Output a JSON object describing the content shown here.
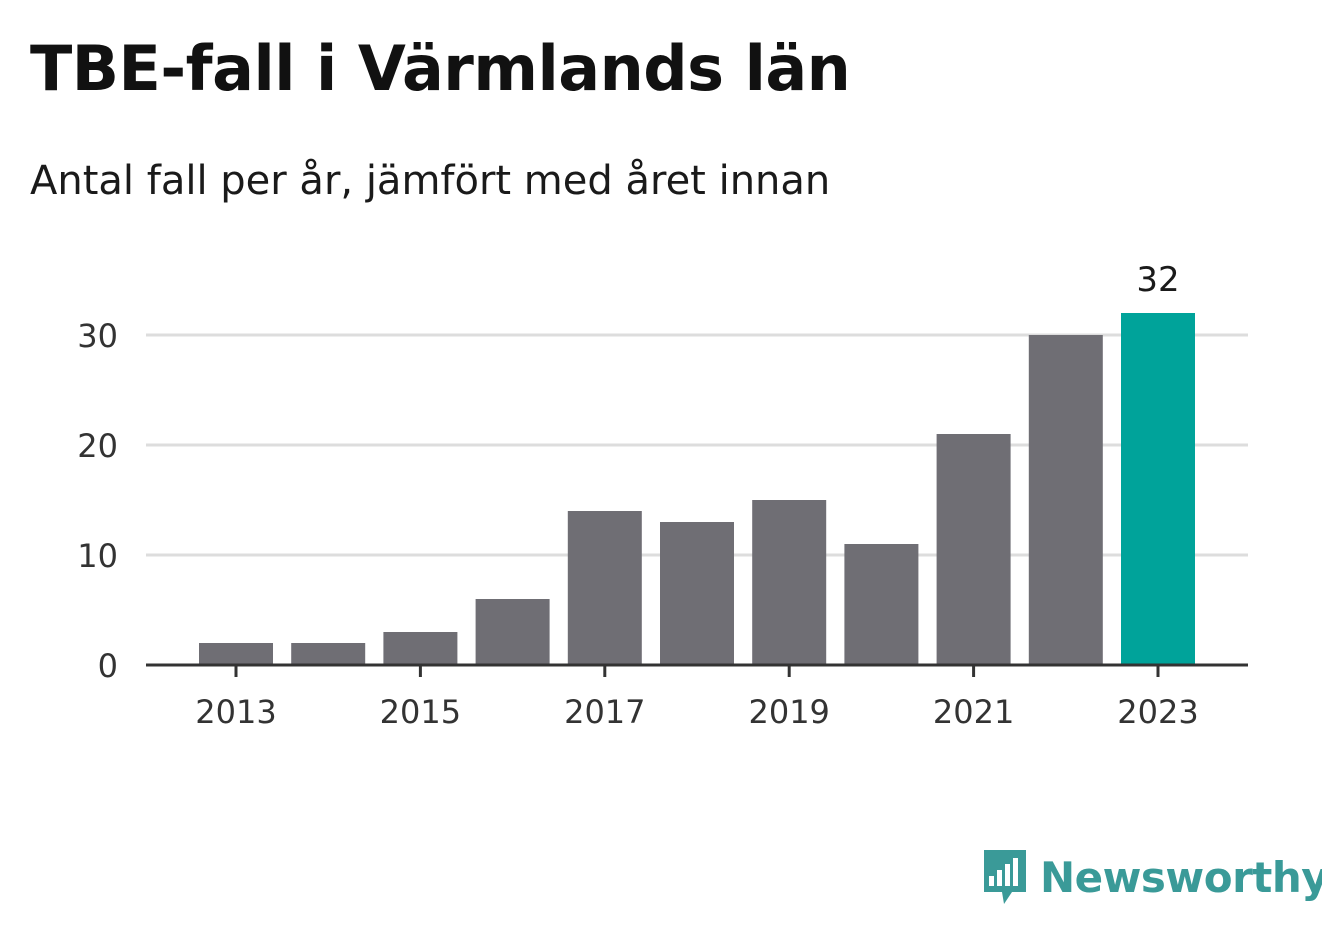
{
  "title": "TBE-fall i Värmlands län",
  "subtitle": "Antal fall per år, jämfört med året innan",
  "brand": "Newsworthy",
  "colors": {
    "bar": "#6f6e74",
    "highlight": "#00a39a",
    "grid": "#dddddd",
    "axis": "#333333",
    "brand": "#3a9a98"
  },
  "chart_data": {
    "type": "bar",
    "categories": [
      "2013",
      "2014",
      "2015",
      "2016",
      "2017",
      "2018",
      "2019",
      "2020",
      "2021",
      "2022",
      "2023"
    ],
    "values": [
      2,
      2,
      3,
      6,
      14,
      13,
      15,
      11,
      21,
      30,
      32
    ],
    "highlight_index": 10,
    "highlight_label": "32",
    "y_ticks": [
      0,
      10,
      20,
      30
    ],
    "x_tick_labels": [
      "2013",
      "2015",
      "2017",
      "2019",
      "2021",
      "2023"
    ],
    "ylim": [
      0,
      32
    ],
    "grid": true,
    "xlabel": "",
    "ylabel": ""
  }
}
